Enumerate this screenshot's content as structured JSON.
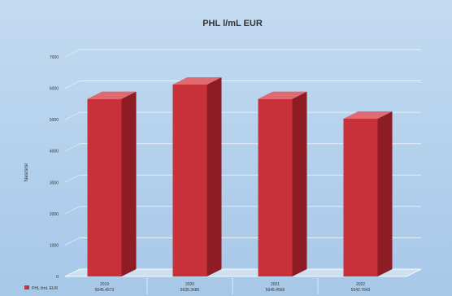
{
  "chart_data": {
    "type": "bar",
    "title": "PHL l/mL EUR",
    "xlabel": "",
    "ylabel": "Nasrsrsr",
    "categories": [
      "2019",
      "2020",
      "2021",
      "2022"
    ],
    "category_sublabels": [
      "5645.4573",
      "5635.3685",
      "5645.4566",
      "5542.7643"
    ],
    "series": [
      {
        "name": "PHL l/mL EUR",
        "values": [
          5660,
          6120,
          5660,
          5030
        ]
      }
    ],
    "ylim": [
      0,
      7000
    ],
    "yticks": [
      0,
      1000,
      2000,
      3000,
      4000,
      5000,
      6000,
      7000
    ],
    "grid": true,
    "legend": "bottom-left",
    "colors": {
      "bar_front": "#c8313a",
      "bar_side": "#8e1c24",
      "bar_top": "#df6a70",
      "background": "#b8d3ee",
      "grid": "#ffffff"
    }
  }
}
